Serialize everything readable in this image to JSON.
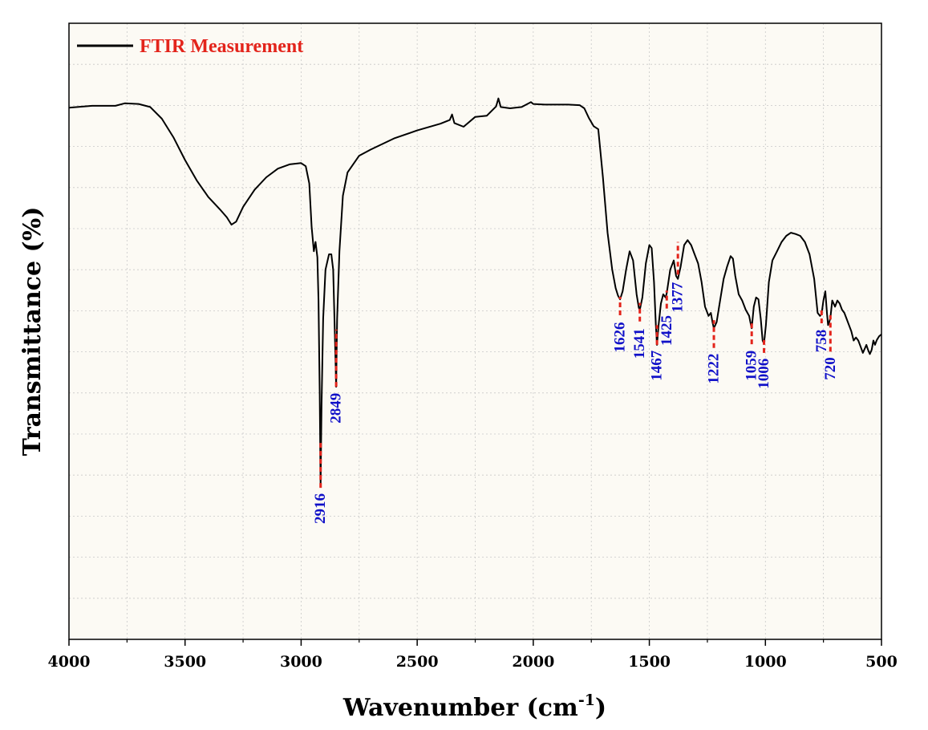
{
  "chart_data": {
    "type": "line",
    "title": "",
    "xlabel": "Wavenumber (cm",
    "xlabel_sup": "-1",
    "xlabel_end": ")",
    "ylabel": "Transmittance (%)",
    "xlim": [
      4000,
      500
    ],
    "ylim": [
      0,
      100
    ],
    "x_reversed": true,
    "grid": true,
    "y_ticklabels_shown": false,
    "x_ticks": [
      4000,
      3500,
      3000,
      2500,
      2000,
      1500,
      1000,
      500
    ],
    "x_ticklabels": [
      "4000",
      "3500",
      "3000",
      "2500",
      "2000",
      "1500",
      "1000",
      "500"
    ],
    "legend": {
      "position": "top-left",
      "entries": [
        "FTIR Measurement"
      ]
    },
    "colors": {
      "line": "#000000",
      "plot_bg": "#fcfaf4",
      "grid": "#c8c8c8",
      "marker": "#e3241b",
      "peak_text": "#1010c8",
      "legend_text": "#e3241b"
    },
    "series": [
      {
        "name": "FTIR Measurement",
        "points": [
          [
            4000,
            86.3
          ],
          [
            3900,
            86.6
          ],
          [
            3800,
            86.6
          ],
          [
            3760,
            87.0
          ],
          [
            3700,
            86.9
          ],
          [
            3650,
            86.4
          ],
          [
            3600,
            84.5
          ],
          [
            3550,
            81.5
          ],
          [
            3500,
            77.8
          ],
          [
            3450,
            74.5
          ],
          [
            3400,
            71.8
          ],
          [
            3350,
            69.8
          ],
          [
            3320,
            68.5
          ],
          [
            3300,
            67.3
          ],
          [
            3280,
            67.8
          ],
          [
            3250,
            70.2
          ],
          [
            3200,
            73.0
          ],
          [
            3150,
            75.0
          ],
          [
            3100,
            76.4
          ],
          [
            3050,
            77.1
          ],
          [
            3000,
            77.3
          ],
          [
            2980,
            76.8
          ],
          [
            2965,
            74.0
          ],
          [
            2955,
            67.0
          ],
          [
            2945,
            63.0
          ],
          [
            2938,
            64.5
          ],
          [
            2930,
            62.0
          ],
          [
            2925,
            55.0
          ],
          [
            2920,
            40.0
          ],
          [
            2916,
            24.8
          ],
          [
            2912,
            38.0
          ],
          [
            2905,
            52.0
          ],
          [
            2895,
            60.0
          ],
          [
            2880,
            62.5
          ],
          [
            2870,
            62.5
          ],
          [
            2862,
            60.0
          ],
          [
            2855,
            50.0
          ],
          [
            2849,
            41.0
          ],
          [
            2845,
            52.0
          ],
          [
            2835,
            63.0
          ],
          [
            2820,
            72.0
          ],
          [
            2800,
            75.8
          ],
          [
            2750,
            78.5
          ],
          [
            2700,
            79.5
          ],
          [
            2600,
            81.3
          ],
          [
            2500,
            82.6
          ],
          [
            2400,
            83.7
          ],
          [
            2360,
            84.3
          ],
          [
            2350,
            85.2
          ],
          [
            2340,
            83.8
          ],
          [
            2300,
            83.2
          ],
          [
            2250,
            84.8
          ],
          [
            2200,
            85.0
          ],
          [
            2160,
            86.5
          ],
          [
            2150,
            87.8
          ],
          [
            2140,
            86.4
          ],
          [
            2100,
            86.2
          ],
          [
            2050,
            86.4
          ],
          [
            2010,
            87.2
          ],
          [
            2000,
            86.9
          ],
          [
            1950,
            86.8
          ],
          [
            1900,
            86.8
          ],
          [
            1850,
            86.8
          ],
          [
            1800,
            86.7
          ],
          [
            1780,
            86.2
          ],
          [
            1760,
            84.6
          ],
          [
            1740,
            83.3
          ],
          [
            1720,
            82.8
          ],
          [
            1700,
            75.0
          ],
          [
            1680,
            66.0
          ],
          [
            1660,
            60.0
          ],
          [
            1645,
            57.0
          ],
          [
            1635,
            55.8
          ],
          [
            1626,
            55.2
          ],
          [
            1615,
            56.5
          ],
          [
            1600,
            60.0
          ],
          [
            1585,
            63.0
          ],
          [
            1570,
            61.5
          ],
          [
            1555,
            56.0
          ],
          [
            1545,
            53.8
          ],
          [
            1541,
            53.5
          ],
          [
            1530,
            55.5
          ],
          [
            1515,
            61.0
          ],
          [
            1500,
            64.0
          ],
          [
            1490,
            63.5
          ],
          [
            1480,
            58.0
          ],
          [
            1472,
            51.0
          ],
          [
            1467,
            47.8
          ],
          [
            1460,
            51.0
          ],
          [
            1450,
            54.5
          ],
          [
            1440,
            56.0
          ],
          [
            1430,
            55.5
          ],
          [
            1425,
            56.2
          ],
          [
            1410,
            60.0
          ],
          [
            1395,
            61.5
          ],
          [
            1385,
            59.0
          ],
          [
            1377,
            58.5
          ],
          [
            1365,
            60.5
          ],
          [
            1350,
            64.0
          ],
          [
            1335,
            64.8
          ],
          [
            1320,
            64.0
          ],
          [
            1305,
            62.5
          ],
          [
            1290,
            61.0
          ],
          [
            1275,
            58.0
          ],
          [
            1260,
            54.0
          ],
          [
            1245,
            52.5
          ],
          [
            1235,
            53.0
          ],
          [
            1228,
            51.5
          ],
          [
            1222,
            50.5
          ],
          [
            1210,
            51.5
          ],
          [
            1195,
            55.0
          ],
          [
            1180,
            58.5
          ],
          [
            1165,
            60.5
          ],
          [
            1150,
            62.2
          ],
          [
            1140,
            61.8
          ],
          [
            1130,
            59.0
          ],
          [
            1115,
            56.0
          ],
          [
            1100,
            55.0
          ],
          [
            1085,
            53.5
          ],
          [
            1070,
            52.5
          ],
          [
            1062,
            51.0
          ],
          [
            1059,
            50.5
          ],
          [
            1050,
            54.0
          ],
          [
            1040,
            55.5
          ],
          [
            1030,
            55.2
          ],
          [
            1020,
            52.0
          ],
          [
            1012,
            48.5
          ],
          [
            1006,
            48.0
          ],
          [
            998,
            51.0
          ],
          [
            985,
            58.0
          ],
          [
            970,
            61.5
          ],
          [
            950,
            63.0
          ],
          [
            930,
            64.5
          ],
          [
            910,
            65.5
          ],
          [
            890,
            66.0
          ],
          [
            870,
            65.8
          ],
          [
            850,
            65.5
          ],
          [
            830,
            64.5
          ],
          [
            810,
            62.5
          ],
          [
            790,
            58.5
          ],
          [
            775,
            53.0
          ],
          [
            765,
            52.5
          ],
          [
            758,
            52.8
          ],
          [
            750,
            55.0
          ],
          [
            742,
            56.5
          ],
          [
            735,
            53.0
          ],
          [
            730,
            51.0
          ],
          [
            725,
            51.5
          ],
          [
            720,
            52.2
          ],
          [
            712,
            55.0
          ],
          [
            700,
            54.0
          ],
          [
            690,
            55.0
          ],
          [
            680,
            54.5
          ],
          [
            670,
            53.5
          ],
          [
            660,
            53.0
          ],
          [
            650,
            52.0
          ],
          [
            640,
            51.0
          ],
          [
            630,
            50.0
          ],
          [
            620,
            48.5
          ],
          [
            610,
            49.0
          ],
          [
            600,
            48.5
          ],
          [
            590,
            47.5
          ],
          [
            580,
            46.5
          ],
          [
            572,
            47.2
          ],
          [
            565,
            47.8
          ],
          [
            558,
            47.0
          ],
          [
            550,
            46.3
          ],
          [
            542,
            47.0
          ],
          [
            535,
            48.5
          ],
          [
            528,
            47.8
          ],
          [
            520,
            48.6
          ],
          [
            510,
            49.2
          ],
          [
            500,
            49.5
          ]
        ]
      }
    ],
    "annotations": [
      {
        "label": "2916",
        "x": 2916,
        "y_top": 24.6,
        "y_bottom": 32.0,
        "label_y": 23.7,
        "side": "below"
      },
      {
        "label": "2849",
        "x": 2849,
        "y_top": 41.0,
        "y_bottom": 50.3,
        "label_y": 40.0,
        "side": "below"
      },
      {
        "label": "1626",
        "x": 1626,
        "y_top": 52.6,
        "y_bottom": 55.6,
        "label_y": 51.5,
        "side": "below"
      },
      {
        "label": "1541",
        "x": 1541,
        "y_top": 51.6,
        "y_bottom": 54.6,
        "label_y": 50.5,
        "side": "below"
      },
      {
        "label": "1467",
        "x": 1467,
        "y_top": 47.8,
        "y_bottom": 51.0,
        "label_y": 46.9,
        "side": "below"
      },
      {
        "label": "1425",
        "x": 1425,
        "y_top": 53.7,
        "y_bottom": 56.6,
        "label_y": 52.6,
        "side": "below"
      },
      {
        "label": "1377",
        "x": 1377,
        "y_top": 59.2,
        "y_bottom": 64.5,
        "label_y": 58.0,
        "side": "below"
      },
      {
        "label": "1222",
        "x": 1222,
        "y_top": 47.3,
        "y_bottom": 51.8,
        "label_y": 46.4,
        "side": "below"
      },
      {
        "label": "1059",
        "x": 1059,
        "y_top": 47.9,
        "y_bottom": 51.4,
        "label_y": 46.9,
        "side": "below"
      },
      {
        "label": "1006",
        "x": 1006,
        "y_top": 46.5,
        "y_bottom": 48.9,
        "label_y": 45.6,
        "side": "below"
      },
      {
        "label": "758",
        "x": 758,
        "y_top": 51.3,
        "y_bottom": 53.4,
        "label_y": 50.3,
        "side": "below"
      },
      {
        "label": "720",
        "x": 720,
        "y_top": 46.7,
        "y_bottom": 52.6,
        "label_y": 45.8,
        "side": "below"
      }
    ]
  }
}
